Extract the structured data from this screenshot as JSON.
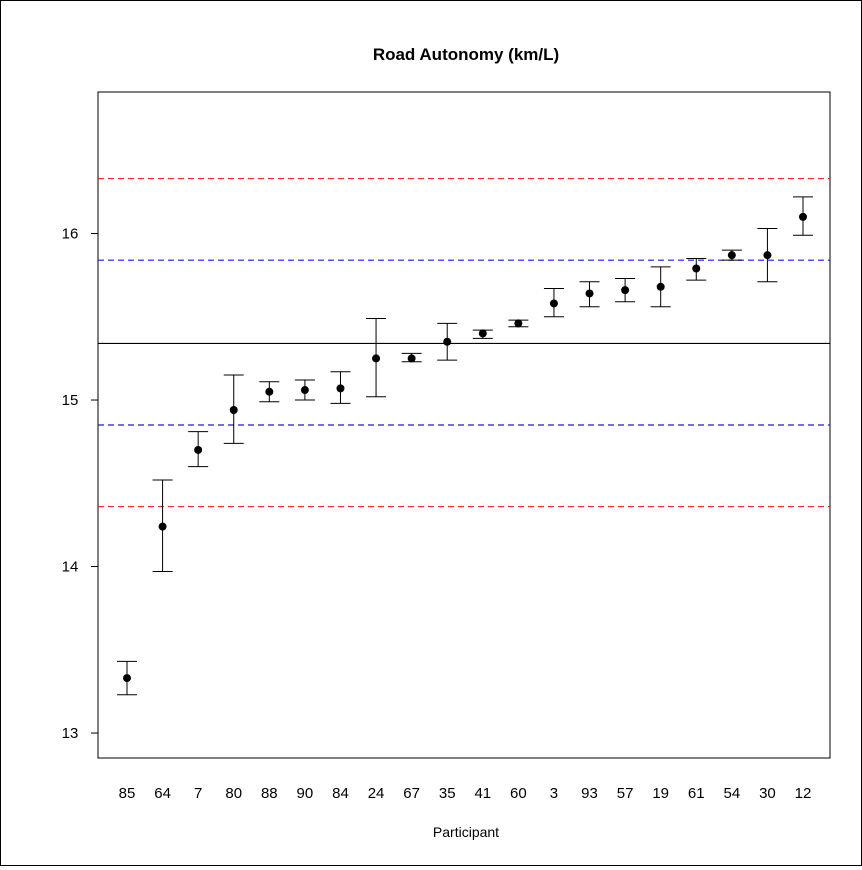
{
  "chart_data": {
    "type": "scatter",
    "title": "Road Autonomy (km/L)",
    "xlabel": "Participant",
    "ylabel": "",
    "ylim": [
      12.85,
      16.85
    ],
    "yticks": [
      13,
      14,
      15,
      16
    ],
    "categories": [
      "85",
      "64",
      "7",
      "80",
      "88",
      "90",
      "84",
      "24",
      "67",
      "35",
      "41",
      "60",
      "3",
      "93",
      "57",
      "19",
      "61",
      "54",
      "30",
      "12"
    ],
    "points": [
      {
        "participant": "85",
        "mean": 13.33,
        "lower": 13.23,
        "upper": 13.43
      },
      {
        "participant": "64",
        "mean": 14.24,
        "lower": 13.97,
        "upper": 14.52
      },
      {
        "participant": "7",
        "mean": 14.7,
        "lower": 14.6,
        "upper": 14.81
      },
      {
        "participant": "80",
        "mean": 14.94,
        "lower": 14.74,
        "upper": 15.15
      },
      {
        "participant": "88",
        "mean": 15.05,
        "lower": 14.99,
        "upper": 15.11
      },
      {
        "participant": "90",
        "mean": 15.06,
        "lower": 15.0,
        "upper": 15.12
      },
      {
        "participant": "84",
        "mean": 15.07,
        "lower": 14.98,
        "upper": 15.17
      },
      {
        "participant": "24",
        "mean": 15.25,
        "lower": 15.02,
        "upper": 15.49
      },
      {
        "participant": "67",
        "mean": 15.25,
        "lower": 15.23,
        "upper": 15.28
      },
      {
        "participant": "35",
        "mean": 15.35,
        "lower": 15.24,
        "upper": 15.46
      },
      {
        "participant": "41",
        "mean": 15.4,
        "lower": 15.37,
        "upper": 15.42
      },
      {
        "participant": "60",
        "mean": 15.46,
        "lower": 15.44,
        "upper": 15.48
      },
      {
        "participant": "3",
        "mean": 15.58,
        "lower": 15.5,
        "upper": 15.67
      },
      {
        "participant": "93",
        "mean": 15.64,
        "lower": 15.56,
        "upper": 15.71
      },
      {
        "participant": "57",
        "mean": 15.66,
        "lower": 15.59,
        "upper": 15.73
      },
      {
        "participant": "19",
        "mean": 15.68,
        "lower": 15.56,
        "upper": 15.8
      },
      {
        "participant": "61",
        "mean": 15.79,
        "lower": 15.72,
        "upper": 15.85
      },
      {
        "participant": "54",
        "mean": 15.87,
        "lower": 15.84,
        "upper": 15.9
      },
      {
        "participant": "30",
        "mean": 15.87,
        "lower": 15.71,
        "upper": 16.03
      },
      {
        "participant": "12",
        "mean": 16.1,
        "lower": 15.99,
        "upper": 16.22
      }
    ],
    "reference_lines": [
      {
        "value": 15.34,
        "color": "#000000",
        "style": "solid"
      },
      {
        "value": 15.84,
        "color": "#1a1adc",
        "style": "dashed"
      },
      {
        "value": 14.85,
        "color": "#1a1adc",
        "style": "dashed"
      },
      {
        "value": 16.33,
        "color": "#e0302c",
        "style": "dashed"
      },
      {
        "value": 14.36,
        "color": "#e0302c",
        "style": "dashed"
      }
    ],
    "grid": false,
    "legend": "none"
  }
}
